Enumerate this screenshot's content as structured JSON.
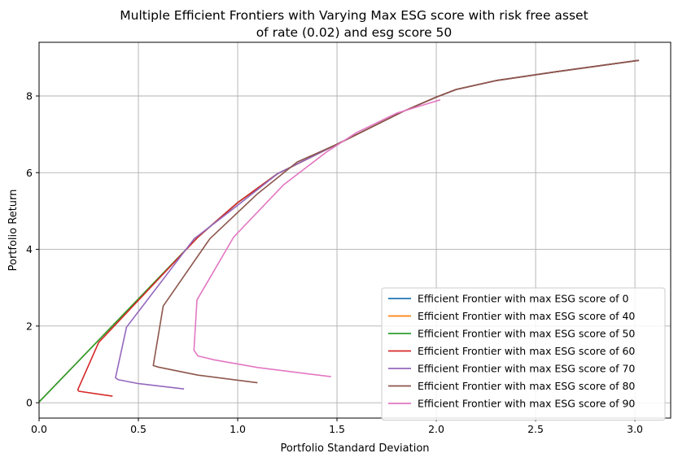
{
  "chart_data": {
    "type": "line",
    "title": "Multiple Efficient Frontiers with Varying Max ESG score with risk free asset",
    "subtitle": "of rate (0.02) and esg score 50",
    "xlabel": "Portfolio Standard Deviation",
    "ylabel": "Portfolio Return",
    "xlim": [
      0,
      3.18
    ],
    "ylim": [
      -0.4,
      9.4
    ],
    "xticks": [
      "0.0",
      "0.5",
      "1.0",
      "1.5",
      "2.0",
      "2.5",
      "3.0"
    ],
    "yticks": [
      "0",
      "2",
      "4",
      "6",
      "8"
    ],
    "grid": true,
    "legend_position": "lower-right",
    "series": [
      {
        "name": "Efficient Frontier with max ESG score of 0",
        "color": "#1f77b4",
        "x": [
          0.0,
          0.8,
          1.0,
          1.2,
          1.5,
          1.83,
          2.0,
          2.1,
          2.3,
          2.6,
          3.02
        ],
        "y": [
          0.02,
          4.32,
          5.22,
          5.97,
          6.74,
          7.59,
          7.97,
          8.17,
          8.4,
          8.63,
          8.93
        ]
      },
      {
        "name": "Efficient Frontier with max ESG score of 40",
        "color": "#ff7f0e",
        "x": [
          0.0,
          0.8,
          1.0,
          1.2,
          1.5,
          1.83,
          2.0,
          2.1,
          2.3,
          2.6,
          3.02
        ],
        "y": [
          0.02,
          4.32,
          5.22,
          5.97,
          6.74,
          7.59,
          7.97,
          8.17,
          8.4,
          8.63,
          8.93
        ]
      },
      {
        "name": "Efficient Frontier with max ESG score of 50",
        "color": "#2ca02c",
        "x": [
          0.0,
          0.8,
          1.0,
          1.2,
          1.5,
          1.83,
          2.0,
          2.1,
          2.3,
          2.6,
          3.02
        ],
        "y": [
          0.02,
          4.32,
          5.22,
          5.97,
          6.74,
          7.59,
          7.97,
          8.17,
          8.4,
          8.63,
          8.93
        ]
      },
      {
        "name": "Efficient Frontier with max ESG score of 60",
        "color": "#d62728",
        "x": [
          0.37,
          0.2,
          0.195,
          0.3,
          0.8,
          1.0,
          1.2,
          1.5,
          1.83,
          2.0,
          2.1,
          2.3,
          2.6,
          3.02
        ],
        "y": [
          0.17,
          0.3,
          0.34,
          1.57,
          4.32,
          5.22,
          5.97,
          6.74,
          7.59,
          7.97,
          8.17,
          8.4,
          8.63,
          8.93
        ]
      },
      {
        "name": "Efficient Frontier with max ESG score of 70",
        "color": "#9467bd",
        "x": [
          0.73,
          0.5,
          0.4,
          0.385,
          0.44,
          0.78,
          1.0,
          1.2,
          1.5,
          1.83,
          2.0,
          2.1,
          2.3,
          2.6,
          3.02
        ],
        "y": [
          0.36,
          0.5,
          0.6,
          0.65,
          1.97,
          4.27,
          5.15,
          5.97,
          6.74,
          7.59,
          7.97,
          8.17,
          8.4,
          8.63,
          8.93
        ]
      },
      {
        "name": "Efficient Frontier with max ESG score of 80",
        "color": "#8c564b",
        "x": [
          1.1,
          0.8,
          0.6,
          0.575,
          0.625,
          0.86,
          1.1,
          1.3,
          1.5,
          1.83,
          2.0,
          2.1,
          2.3,
          2.6,
          3.02
        ],
        "y": [
          0.52,
          0.72,
          0.93,
          0.97,
          2.52,
          4.28,
          5.45,
          6.28,
          6.74,
          7.59,
          7.97,
          8.17,
          8.4,
          8.63,
          8.93
        ]
      },
      {
        "name": "Efficient Frontier with max ESG score of 90",
        "color": "#e377c2",
        "x": [
          1.47,
          1.1,
          0.88,
          0.8,
          0.78,
          0.795,
          0.98,
          1.23,
          1.45,
          1.6,
          1.8,
          2.02
        ],
        "y": [
          0.68,
          0.92,
          1.12,
          1.22,
          1.37,
          2.68,
          4.32,
          5.68,
          6.55,
          7.05,
          7.55,
          7.9
        ]
      }
    ]
  }
}
